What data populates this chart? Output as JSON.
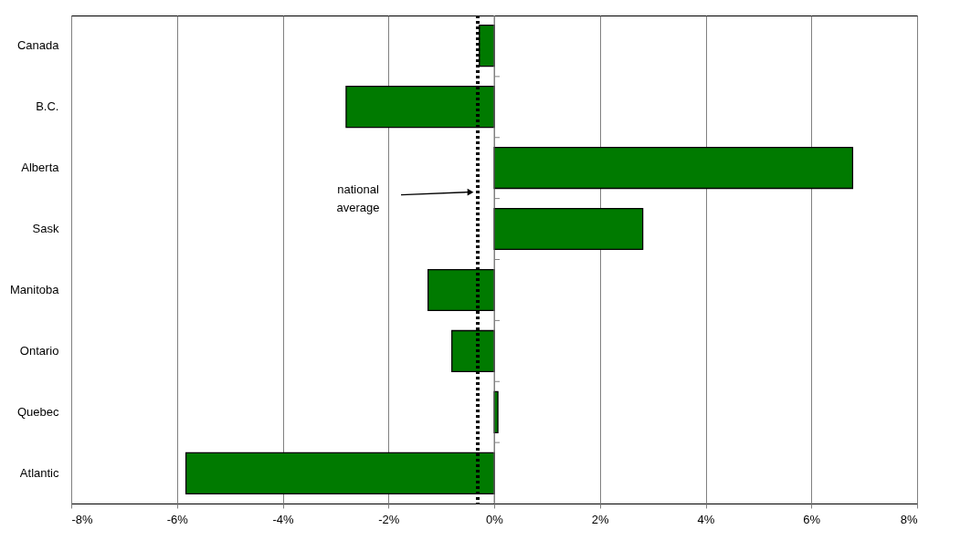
{
  "chart_data": {
    "type": "bar",
    "orientation": "horizontal",
    "categories": [
      "Canada",
      "B.C.",
      "Alberta",
      "Sask",
      "Manitoba",
      "Ontario",
      "Quebec",
      "Atlantic"
    ],
    "values": [
      -0.28,
      -2.8,
      6.78,
      2.81,
      -1.25,
      -0.8,
      0.07,
      -5.83
    ],
    "color": "#007a00",
    "xlim": [
      -8,
      8
    ],
    "xticks": [
      {
        "value": -8,
        "label": "-8%"
      },
      {
        "value": -6,
        "label": "-6%"
      },
      {
        "value": -4,
        "label": "-4%"
      },
      {
        "value": -2,
        "label": "-2%"
      },
      {
        "value": 0,
        "label": "0%"
      },
      {
        "value": 2,
        "label": "2%"
      },
      {
        "value": 4,
        "label": "4%"
      },
      {
        "value": 6,
        "label": "6%"
      },
      {
        "value": 8,
        "label": "8%"
      }
    ],
    "grid": "x",
    "ref_lines": [
      {
        "axis": "x",
        "value": -0.31,
        "label": "national average",
        "color": "#000000",
        "line_style": "dotted"
      }
    ]
  }
}
